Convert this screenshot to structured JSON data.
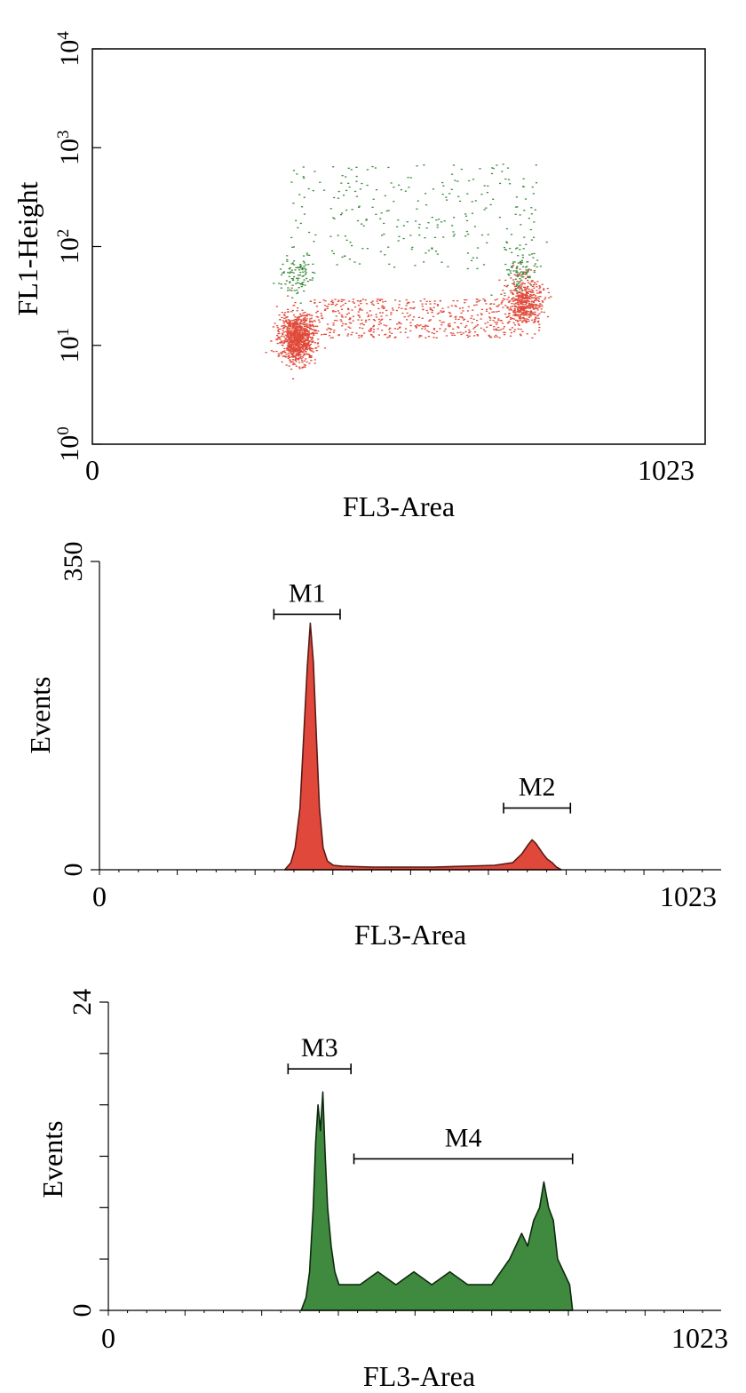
{
  "colors": {
    "red": "#e0483c",
    "red_outline": "#5a1a14",
    "green": "#3f8a3f",
    "green_outline": "#0e2a0e",
    "scatter_red": "#e04a3a",
    "scatter_green": "#3c8c3c"
  },
  "chart_data": [
    {
      "type": "scatter",
      "xlabel": "FL3-Area",
      "ylabel": "FL1-Height",
      "xlim": [
        0,
        1023
      ],
      "ylim": [
        1,
        10000
      ],
      "yscale": "log",
      "x_ticks": [
        "0",
        "1023"
      ],
      "y_ticks": [
        {
          "base": "10",
          "exp": "0",
          "value": 1
        },
        {
          "base": "10",
          "exp": "1",
          "value": 10
        },
        {
          "base": "10",
          "exp": "2",
          "value": 100
        },
        {
          "base": "10",
          "exp": "3",
          "value": 1000
        },
        {
          "base": "10",
          "exp": "4",
          "value": 10000
        }
      ],
      "series": [
        {
          "color": "#e04a3a",
          "clusters": [
            {
              "x": 340,
              "y": 12,
              "count": 900
            },
            {
              "x": 720,
              "y": 28,
              "count": 500
            },
            {
              "x_range": [
                360,
                700
              ],
              "y_range": [
                12,
                30
              ],
              "count": 500
            }
          ]
        },
        {
          "color": "#3c8c3c",
          "clusters": [
            {
              "x": 340,
              "y": 50,
              "count": 100
            },
            {
              "x": 715,
              "y": 60,
              "count": 90
            },
            {
              "x_range": [
                330,
                740
              ],
              "y_range": [
                60,
                700
              ],
              "count": 250
            }
          ]
        }
      ]
    },
    {
      "type": "area",
      "xlabel": "FL3-Area",
      "ylabel": "Events",
      "xlim": [
        0,
        1023
      ],
      "ylim": [
        0,
        350
      ],
      "x_ticks": [
        "0",
        "1023"
      ],
      "y_ticks": [
        "0",
        "350"
      ],
      "color": "#e0483c",
      "x": [
        305,
        315,
        322,
        330,
        336,
        342,
        347,
        352,
        357,
        362,
        368,
        375,
        385,
        400,
        450,
        500,
        550,
        600,
        650,
        680,
        695,
        705,
        712,
        718,
        724,
        730,
        737,
        745,
        752,
        760
      ],
      "y": [
        0,
        8,
        25,
        70,
        150,
        230,
        280,
        235,
        150,
        70,
        25,
        10,
        5,
        4,
        3,
        3,
        3,
        4,
        5,
        8,
        18,
        28,
        34,
        30,
        24,
        18,
        12,
        8,
        3,
        0
      ],
      "markers": [
        {
          "label": "M1",
          "x_range": [
            287,
            396
          ],
          "y": 290
        },
        {
          "label": "M2",
          "x_range": [
            665,
            775
          ],
          "y": 70
        }
      ]
    },
    {
      "type": "area",
      "xlabel": "FL3-Area",
      "ylabel": "Events",
      "xlim": [
        0,
        1023
      ],
      "ylim": [
        0,
        24
      ],
      "x_ticks": [
        "0",
        "1023"
      ],
      "y_ticks": [
        "0",
        "24"
      ],
      "color": "#3f8a3f",
      "x": [
        322,
        330,
        336,
        342,
        346,
        350,
        354,
        358,
        362,
        366,
        372,
        378,
        385,
        395,
        420,
        450,
        480,
        510,
        540,
        570,
        600,
        640,
        670,
        690,
        700,
        710,
        720,
        727,
        735,
        743,
        750,
        760,
        770,
        775
      ],
      "y": [
        0,
        1,
        3,
        8,
        13,
        16,
        14,
        17,
        12,
        8,
        5,
        3,
        2,
        2,
        2,
        3,
        2,
        3,
        2,
        3,
        2,
        2,
        4,
        6,
        5,
        7,
        8,
        10,
        8,
        7,
        4,
        3,
        2,
        0
      ],
      "markers": [
        {
          "label": "M3",
          "x_range": [
            300,
            405
          ],
          "y": 18.8
        },
        {
          "label": "M4",
          "x_range": [
            410,
            775
          ],
          "y": 11.8
        }
      ]
    }
  ]
}
